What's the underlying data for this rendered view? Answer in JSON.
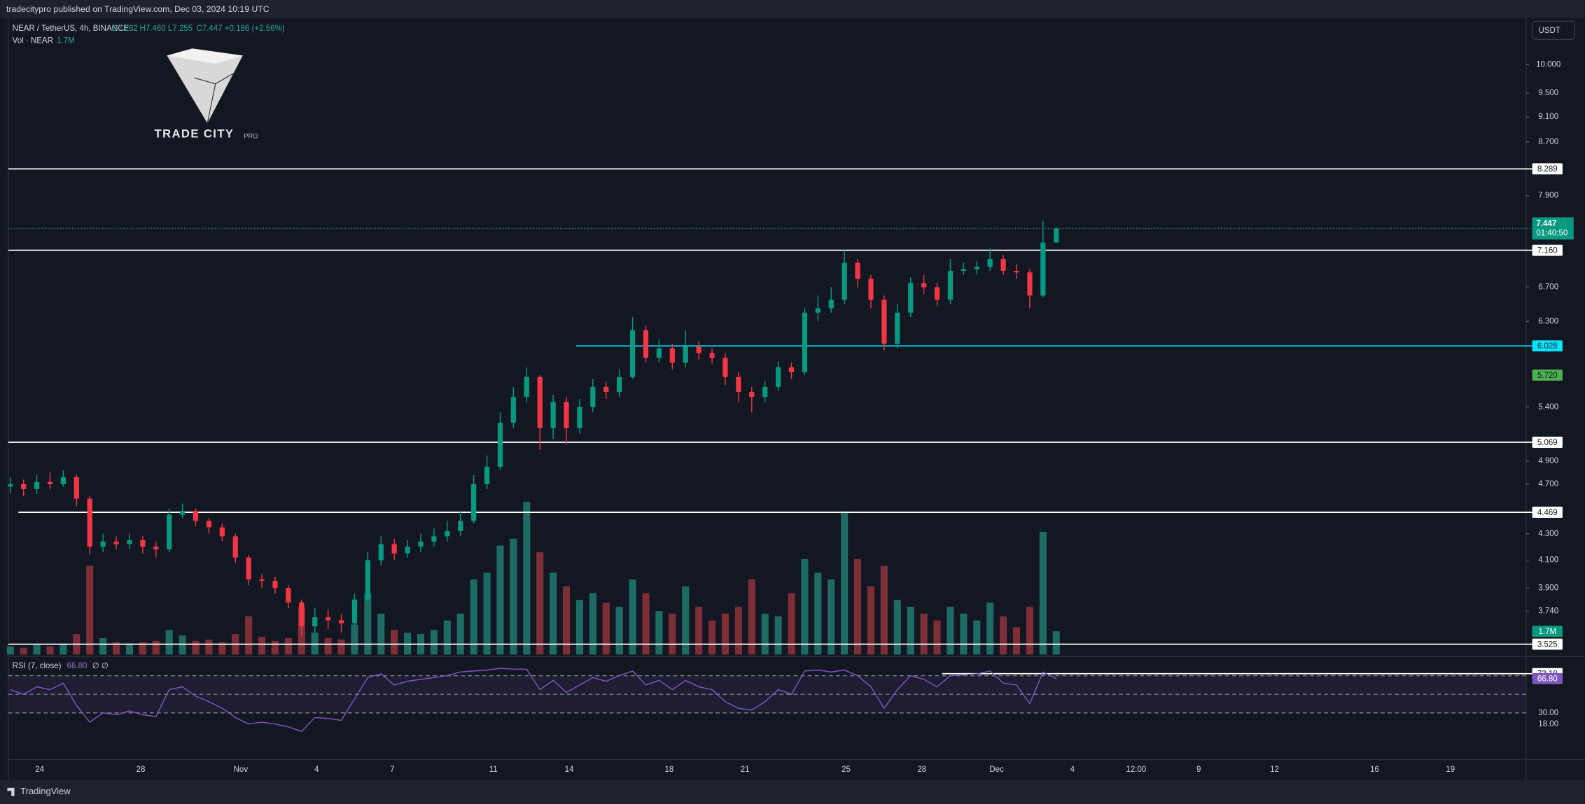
{
  "header": {
    "publisher": "tradecitypro published on TradingView.com, Dec 03, 2024 10:19 UTC",
    "symbol": "NEAR / TetherUS, 4h, BINANCE",
    "ohlc": [
      "O7.262",
      "H7.460",
      "L7.255",
      "C7.447",
      "+0.186 (+2.56%)"
    ],
    "vol_title": "Vol · NEAR",
    "vol_value": "1.7M",
    "currency": "USDT"
  },
  "logo": {
    "name": "TRADE CITY",
    "suffix": "PRO"
  },
  "footer": "TradingView",
  "chart_data": [
    {
      "type": "candlestick",
      "log_scale": true,
      "up_color": "#089981",
      "down_color": "#f23645",
      "time_labels": [
        "24",
        "28",
        "Nov",
        "4",
        "7",
        "11",
        "14",
        "18",
        "21",
        "25",
        "28",
        "Dec",
        "4",
        "12:00",
        "9",
        "12",
        "16",
        "19"
      ],
      "open": [
        4.68,
        4.7,
        4.66,
        4.72,
        4.7,
        4.76,
        4.58,
        4.2,
        4.24,
        4.22,
        4.25,
        4.2,
        4.18,
        4.45,
        4.48,
        4.4,
        4.35,
        4.28,
        4.12,
        3.96,
        3.95,
        3.9,
        3.8,
        3.64,
        3.7,
        3.68,
        3.66,
        3.82,
        4.1,
        4.22,
        4.15,
        4.2,
        4.24,
        4.28,
        4.32,
        4.4,
        4.7,
        4.85,
        5.25,
        5.5,
        5.7,
        5.2,
        5.45,
        5.2,
        5.4,
        5.6,
        5.55,
        5.7,
        6.2,
        5.9,
        6.0,
        5.85,
        6.02,
        5.95,
        5.9,
        5.7,
        5.55,
        5.5,
        5.6,
        5.8,
        5.75,
        6.4,
        6.45,
        6.55,
        7.0,
        6.8,
        6.55,
        6.05,
        6.4,
        6.75,
        6.7,
        6.55,
        6.9,
        6.92,
        6.95,
        7.05,
        6.9,
        6.88,
        6.6,
        7.262
      ],
      "high": [
        4.76,
        4.74,
        4.78,
        4.8,
        4.82,
        4.78,
        4.6,
        4.3,
        4.28,
        4.3,
        4.28,
        4.24,
        4.5,
        4.54,
        4.5,
        4.42,
        4.38,
        4.3,
        4.14,
        4.0,
        3.98,
        3.92,
        3.82,
        3.76,
        3.75,
        3.72,
        3.86,
        4.16,
        4.28,
        4.26,
        4.25,
        4.3,
        4.34,
        4.4,
        4.48,
        4.78,
        4.95,
        5.35,
        5.6,
        5.8,
        5.72,
        5.52,
        5.5,
        5.48,
        5.68,
        5.65,
        5.78,
        6.35,
        6.25,
        6.1,
        6.05,
        6.2,
        6.08,
        6.0,
        5.95,
        5.75,
        5.6,
        5.66,
        5.86,
        5.85,
        6.45,
        6.6,
        6.7,
        7.16,
        7.05,
        6.85,
        6.6,
        6.5,
        6.82,
        6.85,
        6.75,
        7.05,
        7.0,
        7.02,
        7.18,
        7.1,
        6.98,
        6.92,
        7.55,
        7.46
      ],
      "low": [
        4.62,
        4.6,
        4.62,
        4.66,
        4.68,
        4.52,
        4.14,
        4.16,
        4.18,
        4.18,
        4.15,
        4.12,
        4.16,
        4.42,
        4.36,
        4.3,
        4.24,
        4.08,
        3.92,
        3.9,
        3.86,
        3.76,
        3.58,
        3.6,
        3.62,
        3.6,
        3.64,
        3.8,
        4.06,
        4.1,
        4.12,
        4.16,
        4.2,
        4.24,
        4.28,
        4.38,
        4.66,
        4.82,
        5.2,
        5.45,
        5.0,
        5.1,
        5.05,
        5.15,
        5.35,
        5.48,
        5.5,
        5.68,
        5.85,
        5.85,
        5.78,
        5.8,
        5.88,
        5.84,
        5.62,
        5.45,
        5.35,
        5.45,
        5.56,
        5.68,
        5.72,
        6.3,
        6.4,
        6.5,
        6.7,
        6.45,
        5.98,
        6.0,
        6.35,
        6.62,
        6.48,
        6.5,
        6.85,
        6.86,
        6.9,
        6.85,
        6.8,
        6.45,
        6.58,
        7.255
      ],
      "close": [
        4.7,
        4.66,
        4.72,
        4.7,
        4.76,
        4.58,
        4.2,
        4.24,
        4.22,
        4.25,
        4.2,
        4.18,
        4.45,
        4.48,
        4.4,
        4.35,
        4.28,
        4.12,
        3.96,
        3.95,
        3.9,
        3.8,
        3.64,
        3.7,
        3.68,
        3.66,
        3.82,
        4.1,
        4.22,
        4.15,
        4.2,
        4.24,
        4.28,
        4.32,
        4.4,
        4.7,
        4.85,
        5.25,
        5.5,
        5.7,
        5.2,
        5.45,
        5.2,
        5.4,
        5.6,
        5.55,
        5.7,
        6.2,
        5.9,
        6.0,
        5.85,
        6.02,
        5.95,
        5.9,
        5.7,
        5.55,
        5.5,
        5.6,
        5.8,
        5.75,
        6.4,
        6.45,
        6.55,
        7.0,
        6.8,
        6.55,
        6.05,
        6.4,
        6.75,
        6.7,
        6.55,
        6.9,
        6.92,
        6.95,
        7.05,
        6.9,
        6.88,
        6.6,
        7.261,
        7.447
      ],
      "ylim": [
        3.46,
        10.87
      ],
      "yticks": [
        {
          "value": 10,
          "label": "10.000"
        },
        {
          "value": 9.5,
          "label": "9.500"
        },
        {
          "value": 9.1,
          "label": "9.100"
        },
        {
          "value": 8.7,
          "label": "8.700"
        },
        {
          "value": 7.9,
          "label": "7.900"
        },
        {
          "value": 6.7,
          "label": "6.700"
        },
        {
          "value": 6.3,
          "label": "6.300"
        },
        {
          "value": 5.4,
          "label": "5.400"
        },
        {
          "value": 4.9,
          "label": "4.900"
        },
        {
          "value": 4.7,
          "label": "4.700"
        },
        {
          "value": 4.3,
          "label": "4.300"
        },
        {
          "value": 4.1,
          "label": "4.100"
        },
        {
          "value": 3.9,
          "label": "3.900"
        },
        {
          "value": 3.74,
          "label": "3.740"
        }
      ],
      "levels": [
        {
          "value": 8.289,
          "label": "8.289",
          "color": "#ffffff"
        },
        {
          "value": 7.16,
          "label": "7.160",
          "color": "#ffffff"
        },
        {
          "value": 6.028,
          "label": "6.028",
          "color": "#00e5ff"
        },
        {
          "value": 5.069,
          "label": "5.069",
          "color": "#ffffff"
        },
        {
          "value": 4.469,
          "label": "4.469",
          "color": "#ffffff"
        },
        {
          "value": 3.525,
          "label": "3.525",
          "color": "#ffffff"
        }
      ],
      "last_price": {
        "value": 7.447,
        "label": "7.447",
        "countdown": "01:40:50",
        "color": "#089981"
      },
      "marker": {
        "value": 5.72,
        "label": "5.720",
        "color": "#4caf50"
      }
    },
    {
      "type": "bar",
      "name": "Vol · NEAR",
      "up_color": "#1d6b63",
      "down_color": "#7e2e37",
      "values": [
        0.6,
        0.5,
        0.7,
        0.6,
        0.8,
        1.5,
        6.5,
        1.2,
        0.9,
        0.8,
        0.9,
        1.0,
        1.8,
        1.4,
        1.0,
        1.1,
        0.9,
        1.5,
        2.8,
        1.3,
        1.0,
        1.2,
        3.5,
        1.6,
        1.2,
        1.1,
        2.2,
        4.5,
        3.0,
        1.8,
        1.6,
        1.5,
        1.8,
        2.5,
        3.0,
        5.5,
        6.0,
        8.0,
        8.5,
        11.2,
        7.5,
        6.0,
        5.0,
        4.0,
        4.5,
        3.8,
        3.5,
        5.5,
        4.5,
        3.2,
        3.0,
        5.0,
        3.5,
        2.5,
        3.0,
        3.5,
        5.5,
        3.0,
        2.8,
        4.5,
        7.0,
        6.0,
        5.5,
        10.5,
        7.0,
        5.0,
        6.5,
        4.0,
        3.5,
        3.0,
        2.5,
        3.5,
        3.0,
        2.5,
        3.8,
        2.8,
        2.0,
        3.5,
        9.0,
        1.7
      ],
      "ylim": [
        0,
        12
      ],
      "last_label": "1.7M",
      "color": "#089981"
    },
    {
      "type": "line",
      "title": "RSI (7, close)",
      "value_label": "66.80",
      "extra": "∅ ∅",
      "color": "#7e57c2",
      "values": [
        55,
        50,
        58,
        55,
        62,
        38,
        20,
        30,
        28,
        32,
        28,
        26,
        55,
        58,
        48,
        42,
        35,
        25,
        18,
        20,
        18,
        15,
        10,
        25,
        24,
        22,
        45,
        68,
        72,
        60,
        64,
        66,
        68,
        70,
        74,
        75,
        76,
        78,
        77,
        77,
        55,
        65,
        52,
        60,
        68,
        64,
        70,
        75,
        60,
        65,
        55,
        65,
        58,
        55,
        42,
        35,
        33,
        42,
        55,
        50,
        75,
        76,
        74,
        76,
        70,
        58,
        35,
        55,
        70,
        66,
        58,
        70,
        71,
        72,
        75,
        62,
        60,
        40,
        74,
        66.8
      ],
      "ylim": [
        -18,
        88.4
      ],
      "yticks": [
        {
          "value": 30,
          "label": "30.00"
        },
        {
          "value": 18,
          "label": "18.00"
        }
      ],
      "bands": [
        70,
        50,
        30
      ],
      "levels": [
        {
          "value": 72.18,
          "label": "72.18"
        }
      ]
    }
  ]
}
